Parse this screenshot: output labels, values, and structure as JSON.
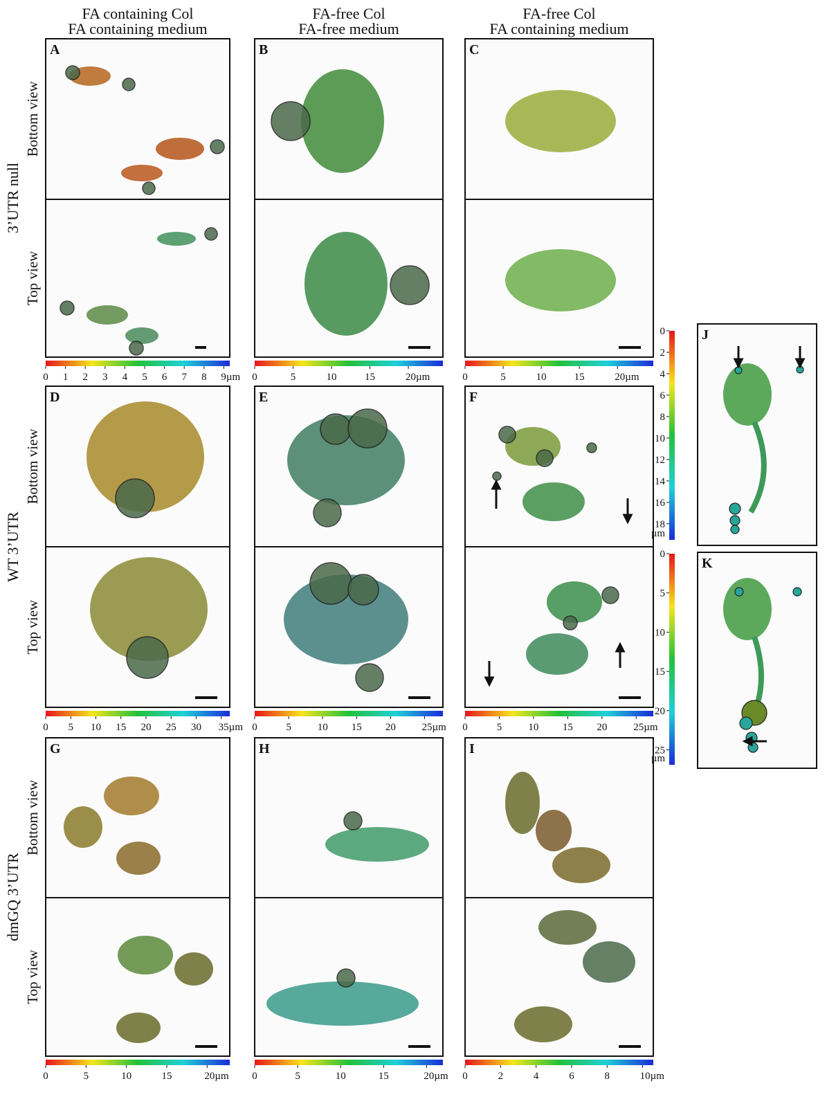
{
  "columns": [
    {
      "line1": "FA containing Col",
      "line2": "FA containing medium"
    },
    {
      "line1": "FA-free Col",
      "line2": "FA-free medium"
    },
    {
      "line1": "FA-free Col",
      "line2": "FA containing medium"
    }
  ],
  "rows": [
    {
      "label": "3’UTR null",
      "bottom": "Bottom view",
      "top": "Top view"
    },
    {
      "label": "WT 3’UTR",
      "bottom": "Bottom view",
      "top": "Top view"
    },
    {
      "label": "dmGQ 3’UTR",
      "bottom": "Bottom view",
      "top": "Top view"
    }
  ],
  "panels": [
    {
      "letter": "A",
      "colorbar": {
        "lim": [
          0,
          9.3
        ],
        "ticks": [
          0,
          1,
          2,
          3,
          4,
          5,
          6,
          7,
          8,
          {
            "value": 9,
            "label": "9µm"
          }
        ]
      }
    },
    {
      "letter": "B",
      "colorbar": {
        "lim": [
          0,
          24.5
        ],
        "ticks": [
          0,
          5,
          10,
          15,
          {
            "value": 20,
            "label": "20µm"
          }
        ]
      }
    },
    {
      "letter": "C",
      "colorbar": {
        "lim": [
          0,
          24.7
        ],
        "ticks": [
          0,
          5,
          10,
          15,
          {
            "value": 20,
            "label": "20µm"
          }
        ]
      }
    },
    {
      "letter": "D",
      "colorbar": {
        "lim": [
          0,
          36.7
        ],
        "ticks": [
          0,
          5,
          10,
          15,
          20,
          25,
          30,
          {
            "value": 35,
            "label": "35µm"
          }
        ]
      }
    },
    {
      "letter": "E",
      "colorbar": {
        "lim": [
          0,
          27.7
        ],
        "ticks": [
          0,
          5,
          10,
          15,
          20,
          {
            "value": 25,
            "label": "25µm"
          }
        ]
      }
    },
    {
      "letter": "F",
      "colorbar": {
        "lim": [
          0,
          27.5
        ],
        "ticks": [
          0,
          5,
          10,
          15,
          20,
          {
            "value": 25,
            "label": "25µm"
          }
        ]
      }
    },
    {
      "letter": "G",
      "colorbar": {
        "lim": [
          0,
          22.8
        ],
        "ticks": [
          0,
          5,
          10,
          15,
          {
            "value": 20,
            "label": "20µm"
          }
        ]
      }
    },
    {
      "letter": "H",
      "colorbar": {
        "lim": [
          0,
          21.9
        ],
        "ticks": [
          0,
          5,
          10,
          15,
          {
            "value": 20,
            "label": "20µm"
          }
        ]
      }
    },
    {
      "letter": "I",
      "colorbar": {
        "lim": [
          0,
          10.6
        ],
        "ticks": [
          0,
          2,
          4,
          6,
          8,
          {
            "value": 10,
            "label": "10µm"
          }
        ]
      }
    }
  ],
  "side_panels": [
    {
      "letter": "J",
      "colorbar": {
        "lim": [
          0,
          19.5
        ],
        "ticks": [
          0,
          2,
          4,
          6,
          8,
          10,
          12,
          14,
          16,
          18
        ],
        "unit": "µm"
      }
    },
    {
      "letter": "K",
      "colorbar": {
        "lim": [
          0,
          26.9
        ],
        "ticks": [
          0,
          5,
          10,
          15,
          20,
          25
        ],
        "unit": "µm"
      }
    }
  ]
}
